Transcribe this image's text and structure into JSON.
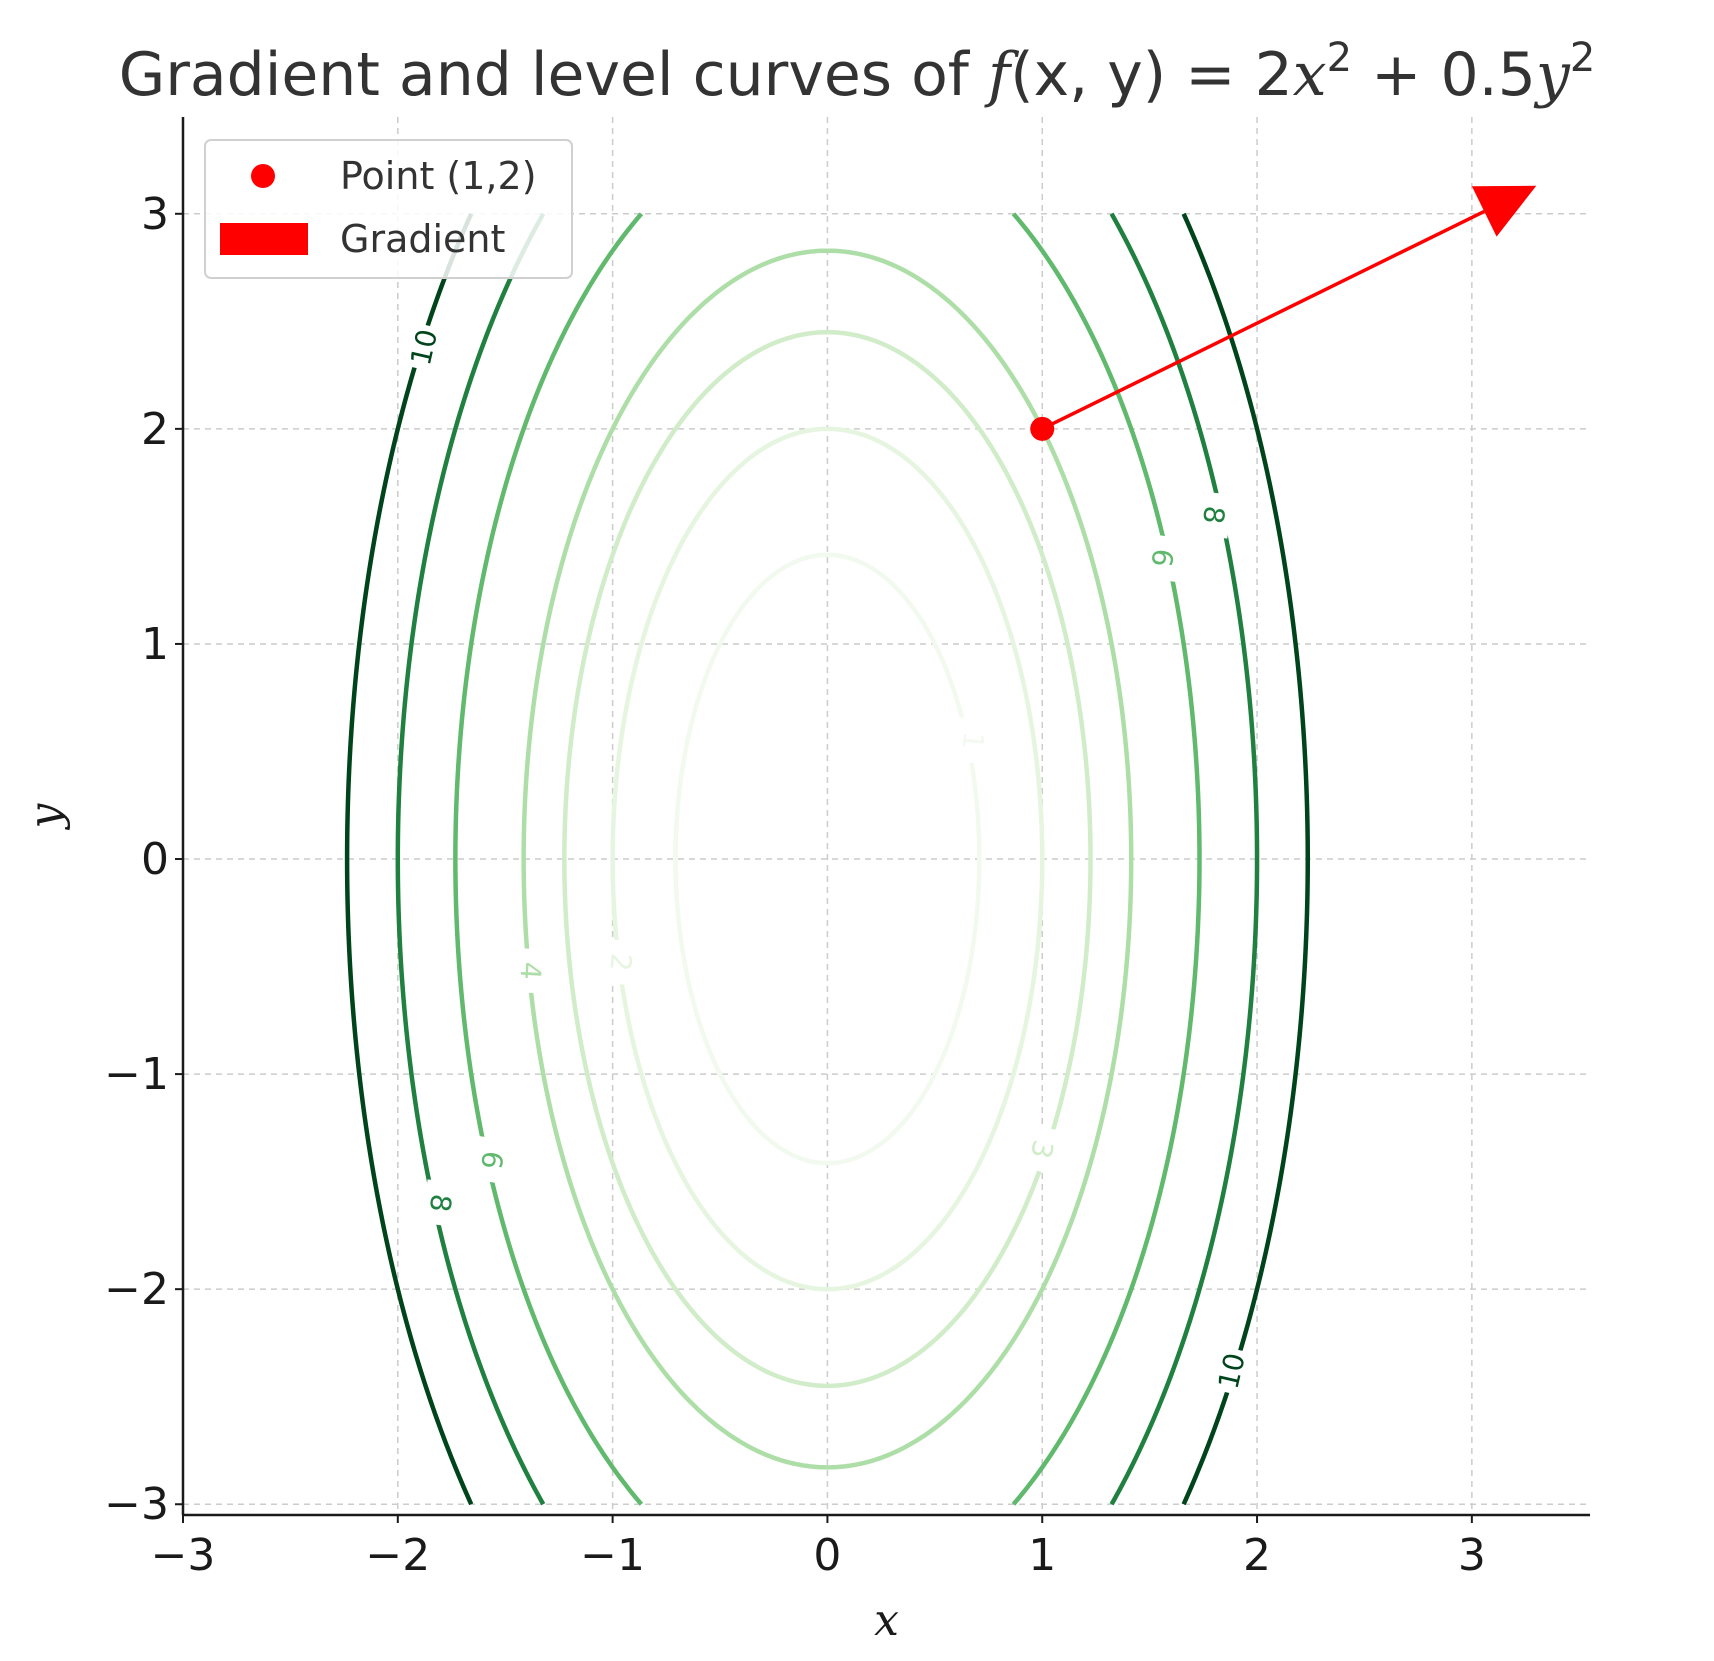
{
  "chart_data": {
    "type": "contour",
    "title": {
      "prefix": "Gradient and level curves of ",
      "func": "f",
      "args": "(x, y)",
      "eq": " = 2",
      "x": "x",
      "sq": "2",
      "plus": " + 0.5",
      "y": "y",
      "sq2": "2",
      "full": "Gradient and level curves of f(x, y) = 2x² + 0.5y²"
    },
    "xlabel": "x",
    "ylabel": "y",
    "xlim": [
      -3,
      3.55
    ],
    "ylim": [
      -3.05,
      3.45
    ],
    "x_ticks": [
      -3,
      -2,
      -1,
      0,
      1,
      2,
      3
    ],
    "y_ticks": [
      -3,
      -2,
      -1,
      0,
      1,
      2,
      3
    ],
    "x_tick_labels": [
      "−3",
      "−2",
      "−1",
      "0",
      "1",
      "2",
      "3"
    ],
    "y_tick_labels": [
      "−3",
      "−2",
      "−1",
      "0",
      "1",
      "2",
      "3"
    ],
    "grid": true,
    "function": "2*x^2 + 0.5*y^2",
    "contour_domain": {
      "x": [
        -3,
        3
      ],
      "y": [
        -3,
        3
      ]
    },
    "levels": [
      {
        "value": 1,
        "label": "1",
        "color": "#f2faef"
      },
      {
        "value": 2,
        "label": "2",
        "color": "#e5f5e0"
      },
      {
        "value": 3,
        "label": "3",
        "color": "#d0ecc8"
      },
      {
        "value": 4,
        "label": "4",
        "color": "#aedea7"
      },
      {
        "value": 6,
        "label": "6",
        "color": "#60b96c"
      },
      {
        "value": 8,
        "label": "8",
        "color": "#1f8040"
      },
      {
        "value": 10,
        "label": "10",
        "color": "#00441b"
      }
    ],
    "contour_labels": [
      {
        "value": 10,
        "x": -1.88,
        "y": 2.38,
        "angle_deg": -77
      },
      {
        "value": 10,
        "x": 1.88,
        "y": -2.38,
        "angle_deg": -77
      },
      {
        "value": 8,
        "x": -1.8,
        "y": -1.6,
        "angle_deg": 97
      },
      {
        "value": 8,
        "x": 1.8,
        "y": 1.6,
        "angle_deg": 97
      },
      {
        "value": 6,
        "x": -1.56,
        "y": -1.4,
        "angle_deg": 98
      },
      {
        "value": 6,
        "x": 1.56,
        "y": 1.4,
        "angle_deg": 98
      },
      {
        "value": 4,
        "x": -1.38,
        "y": -0.52,
        "angle_deg": 93
      },
      {
        "value": 3,
        "x": 1.0,
        "y": -1.35,
        "angle_deg": 102
      },
      {
        "value": 2,
        "x": -0.96,
        "y": -0.48,
        "angle_deg": 95
      },
      {
        "value": 1,
        "x": 0.68,
        "y": 0.55,
        "angle_deg": 95
      }
    ],
    "point": {
      "x": 1,
      "y": 2,
      "color": "#ff0000"
    },
    "gradient_arrow": {
      "x0": 1,
      "y0": 2,
      "x1": 3.3,
      "y1": 3.13,
      "color": "#ff0000"
    },
    "legend": {
      "position": "upper left",
      "entries": [
        {
          "label": "Point (1,2)",
          "marker": "dot",
          "color": "#ff0000"
        },
        {
          "label": "Gradient",
          "marker": "patch",
          "color": "#ff0000"
        }
      ]
    }
  }
}
